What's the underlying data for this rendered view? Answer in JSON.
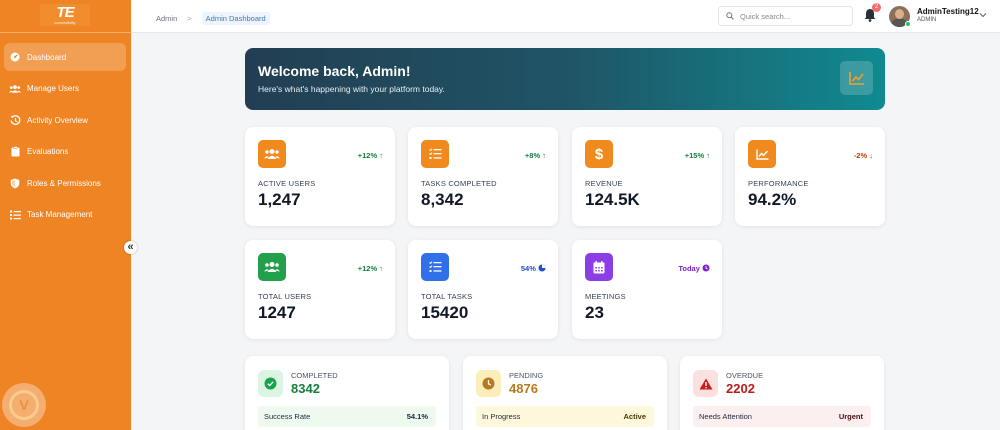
{
  "brand": {
    "logo_text": "TE",
    "logo_sub": "connectivity"
  },
  "sidebar": {
    "items": [
      {
        "label": "Dashboard",
        "icon": "gauge-icon",
        "active": true
      },
      {
        "label": "Manage Users",
        "icon": "users-icon",
        "active": false
      },
      {
        "label": "Activity Overview",
        "icon": "history-icon",
        "active": false
      },
      {
        "label": "Evaluations",
        "icon": "clipboard-icon",
        "active": false
      },
      {
        "label": "Roles & Permissions",
        "icon": "shield-icon",
        "active": false
      },
      {
        "label": "Task Management",
        "icon": "list-icon",
        "active": false
      }
    ],
    "collapse_label": "«"
  },
  "header": {
    "breadcrumb": [
      "Admin",
      "Admin Dashboard"
    ],
    "breadcrumb_sep": ">",
    "search_placeholder": "Quick search...",
    "notification_count": "2",
    "user_name": "AdminTesting12",
    "user_role": "ADMIN"
  },
  "banner": {
    "title": "Welcome back, Admin!",
    "subtitle": "Here's what's happening with your platform today.",
    "icon": "chart-line-icon"
  },
  "stats_row1": [
    {
      "label": "ACTIVE USERS",
      "value": "1,247",
      "trend": "+12%",
      "trend_dir": "up",
      "icon": "users-icon",
      "color": "#f08a1c"
    },
    {
      "label": "TASKS COMPLETED",
      "value": "8,342",
      "trend": "+8%",
      "trend_dir": "up",
      "icon": "tasks-icon",
      "color": "#f08a1c"
    },
    {
      "label": "REVENUE",
      "value": "124.5K",
      "trend": "+15%",
      "trend_dir": "up",
      "icon": "dollar-icon",
      "color": "#f08a1c"
    },
    {
      "label": "PERFORMANCE",
      "value": "94.2%",
      "trend": "-2%",
      "trend_dir": "down",
      "icon": "chart-icon",
      "color": "#f08a1c"
    }
  ],
  "stats_row2": [
    {
      "label": "TOTAL USERS",
      "value": "1247",
      "trend": "+12%",
      "trend_dir": "up",
      "icon": "users-icon",
      "color": "#22a04b"
    },
    {
      "label": "TOTAL TASKS",
      "value": "15420",
      "trend": "54%",
      "trend_dir": "pie",
      "icon": "tasks-icon",
      "color": "#3070e8"
    },
    {
      "label": "MEETINGS",
      "value": "23",
      "trend": "Today",
      "trend_dir": "clock",
      "icon": "calendar-icon",
      "color": "#8b3ee6"
    }
  ],
  "status_cards": [
    {
      "label": "COMPLETED",
      "value": "8342",
      "bar_left": "Success Rate",
      "bar_right": "54.1%",
      "icon": "check-icon",
      "value_color": "#15803d",
      "icon_bg": "#dcf5e3",
      "bar_bg": "#eefaf0",
      "right_color": "#111827"
    },
    {
      "label": "PENDING",
      "value": "4876",
      "bar_left": "In Progress",
      "bar_right": "Active",
      "icon": "clock-icon",
      "value_color": "#b7791f",
      "icon_bg": "#fbeeb8",
      "bar_bg": "#fdf7dc",
      "right_color": "#4b3a00"
    },
    {
      "label": "OVERDUE",
      "value": "2202",
      "bar_left": "Needs Attention",
      "bar_right": "Urgent",
      "icon": "warning-icon",
      "value_color": "#b91c1c",
      "icon_bg": "#fbe0e0",
      "bar_bg": "#fcefef",
      "right_color": "#4a1010"
    }
  ]
}
